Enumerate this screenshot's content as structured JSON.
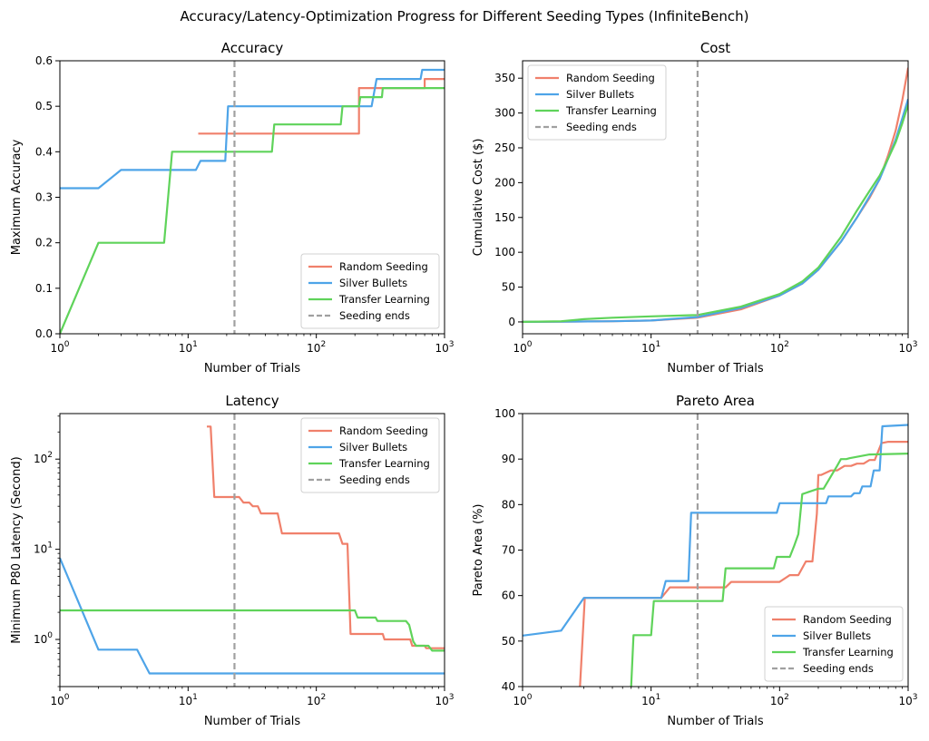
{
  "figure_title": "Accuracy/Latency-Optimization Progress for Different Seeding Types (InfiniteBench)",
  "colors": {
    "random": "#f0806b",
    "silver": "#4ea4e8",
    "transfer": "#5fd35a",
    "seeding": "#a0a0a0",
    "axes": "#000000"
  },
  "chart_data": [
    {
      "type": "line",
      "title": "Accuracy",
      "xlabel": "Number of Trials",
      "ylabel": "Maximum Accuracy",
      "xscale": "log",
      "yscale": "linear",
      "xlim": [
        1,
        1000
      ],
      "ylim": [
        0,
        0.6
      ],
      "xticks": [
        1,
        10,
        100,
        1000
      ],
      "xtick_labels": [
        "10^0",
        "10^1",
        "10^2",
        "10^3"
      ],
      "yticks": [
        0,
        0.1,
        0.2,
        0.3,
        0.4,
        0.5,
        0.6
      ],
      "ytick_labels": [
        "0.0",
        "0.1",
        "0.2",
        "0.3",
        "0.4",
        "0.5",
        "0.6"
      ],
      "seeding_ends_x": 23,
      "legend_position": "lower-right",
      "legend": [
        "Random Seeding",
        "Silver Bullets",
        "Transfer Learning",
        "Seeding ends"
      ],
      "series": [
        {
          "name": "Random Seeding",
          "x": [
            12,
            215,
            215,
            700,
            700,
            1000
          ],
          "y": [
            0.44,
            0.44,
            0.54,
            0.54,
            0.56,
            0.56
          ]
        },
        {
          "name": "Silver Bullets",
          "x": [
            1,
            2,
            3,
            11.5,
            12.5,
            19.5,
            20.5,
            270,
            295,
            650,
            670,
            1000
          ],
          "y": [
            0.32,
            0.32,
            0.36,
            0.36,
            0.38,
            0.38,
            0.5,
            0.5,
            0.56,
            0.56,
            0.58,
            0.58
          ]
        },
        {
          "name": "Transfer Learning",
          "x": [
            1,
            2,
            6.5,
            7.5,
            45,
            47,
            155,
            160,
            215,
            220,
            325,
            330,
            1000
          ],
          "y": [
            0,
            0.2,
            0.2,
            0.4,
            0.4,
            0.46,
            0.46,
            0.5,
            0.5,
            0.52,
            0.52,
            0.54,
            0.54
          ]
        }
      ]
    },
    {
      "type": "line",
      "title": "Cost",
      "xlabel": "Number of Trials",
      "ylabel": "Cumulative Cost ($)",
      "xscale": "log",
      "yscale": "linear",
      "xlim": [
        1,
        1000
      ],
      "ylim": [
        -17,
        375
      ],
      "xticks": [
        1,
        10,
        100,
        1000
      ],
      "xtick_labels": [
        "10^0",
        "10^1",
        "10^2",
        "10^3"
      ],
      "yticks": [
        0,
        50,
        100,
        150,
        200,
        250,
        300,
        350
      ],
      "ytick_labels": [
        "0",
        "50",
        "100",
        "150",
        "200",
        "250",
        "300",
        "350"
      ],
      "seeding_ends_x": 23,
      "legend_position": "upper-left",
      "legend": [
        "Random Seeding",
        "Silver Bullets",
        "Transfer Learning",
        "Seeding ends"
      ],
      "series": [
        {
          "name": "Random Seeding",
          "x": [
            1,
            2,
            5,
            10,
            23,
            50,
            100,
            150,
            200,
            300,
            400,
            500,
            600,
            700,
            800,
            900,
            1000
          ],
          "y": [
            0,
            0.5,
            1,
            2,
            6,
            18,
            38,
            55,
            75,
            115,
            150,
            178,
            205,
            240,
            275,
            318,
            365
          ]
        },
        {
          "name": "Silver Bullets",
          "x": [
            1,
            2,
            5,
            10,
            23,
            50,
            100,
            150,
            200,
            300,
            400,
            500,
            600,
            700,
            800,
            900,
            1000
          ],
          "y": [
            0,
            0.5,
            1,
            2,
            7,
            20,
            38,
            55,
            75,
            115,
            150,
            180,
            205,
            235,
            262,
            292,
            320
          ]
        },
        {
          "name": "Transfer Learning",
          "x": [
            1,
            2,
            3,
            5,
            10,
            23,
            50,
            100,
            150,
            200,
            300,
            400,
            500,
            600,
            700,
            800,
            900,
            1000
          ],
          "y": [
            0,
            1,
            4,
            6,
            8,
            10,
            22,
            40,
            58,
            78,
            122,
            160,
            188,
            210,
            235,
            258,
            285,
            312
          ]
        }
      ]
    },
    {
      "type": "line",
      "title": "Latency",
      "xlabel": "Number of Trials",
      "ylabel": "Minimum P80 Latency (Second)",
      "xscale": "log",
      "yscale": "log",
      "xlim": [
        1,
        1000
      ],
      "ylim": [
        0.3,
        320
      ],
      "xticks": [
        1,
        10,
        100,
        1000
      ],
      "xtick_labels": [
        "10^0",
        "10^1",
        "10^2",
        "10^3"
      ],
      "yticks": [
        1,
        10,
        100
      ],
      "ytick_labels": [
        "10^0",
        "10^1",
        "10^2"
      ],
      "seeding_ends_x": 23,
      "legend_position": "upper-right",
      "legend": [
        "Random Seeding",
        "Silver Bullets",
        "Transfer Learning",
        "Seeding ends"
      ],
      "series": [
        {
          "name": "Random Seeding",
          "x": [
            14,
            15,
            16,
            25,
            27,
            30,
            32,
            35,
            37,
            50,
            54,
            150,
            160,
            175,
            185,
            330,
            340,
            540,
            560,
            700,
            720,
            1000
          ],
          "y": [
            230,
            230,
            38,
            38,
            33,
            33,
            30,
            30,
            25,
            25,
            15,
            15,
            11.5,
            11.5,
            1.15,
            1.15,
            1.0,
            1.0,
            0.85,
            0.85,
            0.8,
            0.8
          ]
        },
        {
          "name": "Silver Bullets",
          "x": [
            1,
            2,
            4,
            5,
            1000
          ],
          "y": [
            8,
            0.77,
            0.77,
            0.42,
            0.42
          ]
        },
        {
          "name": "Transfer Learning",
          "x": [
            1,
            200,
            210,
            290,
            300,
            500,
            530,
            570,
            600,
            750,
            800,
            1000
          ],
          "y": [
            2.1,
            2.1,
            1.75,
            1.75,
            1.6,
            1.6,
            1.45,
            0.95,
            0.85,
            0.85,
            0.75,
            0.75
          ]
        }
      ]
    },
    {
      "type": "line",
      "title": "Pareto Area",
      "xlabel": "Number of Trials",
      "ylabel": "Pareto Area (%)",
      "xscale": "log",
      "yscale": "linear",
      "xlim": [
        1,
        1000
      ],
      "ylim": [
        40,
        100
      ],
      "xticks": [
        1,
        10,
        100,
        1000
      ],
      "xtick_labels": [
        "10^0",
        "10^1",
        "10^2",
        "10^3"
      ],
      "yticks": [
        40,
        50,
        60,
        70,
        80,
        90,
        100
      ],
      "ytick_labels": [
        "40",
        "50",
        "60",
        "70",
        "80",
        "90",
        "100"
      ],
      "seeding_ends_x": 23,
      "legend_position": "lower-right",
      "legend": [
        "Random Seeding",
        "Silver Bullets",
        "Transfer Learning",
        "Seeding ends"
      ],
      "series": [
        {
          "name": "Random Seeding",
          "x": [
            2.8,
            3.05,
            12,
            14,
            38,
            42,
            100,
            120,
            140,
            160,
            180,
            195,
            200,
            210,
            250,
            280,
            320,
            360,
            400,
            450,
            500,
            550,
            620,
            700,
            1000
          ],
          "y": [
            40,
            59.5,
            59.5,
            61.8,
            61.8,
            63.0,
            63.0,
            64.5,
            64.5,
            67.5,
            67.5,
            78,
            86.5,
            86.5,
            87.5,
            87.5,
            88.5,
            88.5,
            89.0,
            89.0,
            89.8,
            89.8,
            93.5,
            93.8,
            93.8
          ]
        },
        {
          "name": "Silver Bullets",
          "x": [
            1,
            2,
            3,
            12,
            13,
            19.5,
            20.5,
            95,
            100,
            230,
            240,
            360,
            380,
            420,
            440,
            510,
            540,
            600,
            630,
            1000
          ],
          "y": [
            51.2,
            52.3,
            59.5,
            59.5,
            63.2,
            63.2,
            78.2,
            78.2,
            80.3,
            80.3,
            81.8,
            81.8,
            82.5,
            82.5,
            84,
            84,
            87.5,
            87.5,
            97.2,
            97.5
          ]
        },
        {
          "name": "Transfer Learning",
          "x": [
            7,
            7.3,
            10,
            10.5,
            36,
            38,
            90,
            95,
            120,
            130,
            140,
            150,
            200,
            220,
            280,
            300,
            330,
            350,
            500,
            1000
          ],
          "y": [
            40,
            51.3,
            51.3,
            58.8,
            58.8,
            66,
            66,
            68.5,
            68.5,
            71,
            73.5,
            82.3,
            83.5,
            83.5,
            88.5,
            90,
            90,
            90.2,
            91,
            91.2
          ]
        }
      ]
    }
  ]
}
